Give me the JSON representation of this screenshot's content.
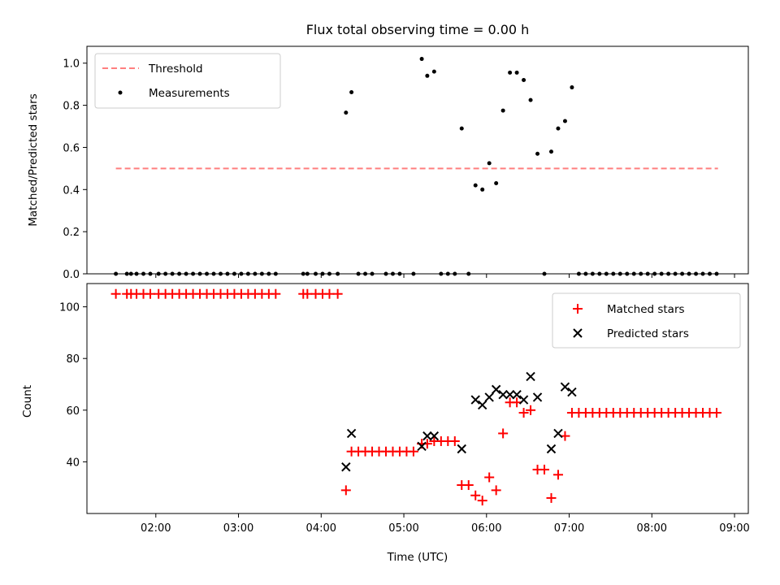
{
  "chart_data": [
    {
      "type": "scatter",
      "title": "Flux total observing time = 0.00 h",
      "xlabel": "",
      "ylabel": "Matched/Predicted stars",
      "xlim": [
        "01:10",
        "09:10"
      ],
      "ylim": [
        0,
        1.08
      ],
      "grid": false,
      "legend_position": "top-left",
      "y_ticks": [
        "0.0",
        "0.2",
        "0.4",
        "0.6",
        "0.8",
        "1.0"
      ],
      "series": [
        {
          "name": "Threshold",
          "kind": "dashed-line",
          "color": "#ff7f7f",
          "points": [
            {
              "x": "01:31",
              "y": 0.5
            },
            {
              "x": "08:48",
              "y": 0.5
            }
          ]
        },
        {
          "name": "Measurements",
          "kind": "dots",
          "color": "#000000",
          "points": [
            {
              "x": "01:31",
              "y": 0
            },
            {
              "x": "01:39",
              "y": 0
            },
            {
              "x": "01:42",
              "y": 0
            },
            {
              "x": "01:46",
              "y": 0
            },
            {
              "x": "01:51",
              "y": 0
            },
            {
              "x": "01:56",
              "y": 0
            },
            {
              "x": "02:02",
              "y": 0
            },
            {
              "x": "02:07",
              "y": 0
            },
            {
              "x": "02:12",
              "y": 0
            },
            {
              "x": "02:17",
              "y": 0
            },
            {
              "x": "02:22",
              "y": 0
            },
            {
              "x": "02:27",
              "y": 0
            },
            {
              "x": "02:32",
              "y": 0
            },
            {
              "x": "02:37",
              "y": 0
            },
            {
              "x": "02:42",
              "y": 0
            },
            {
              "x": "02:47",
              "y": 0
            },
            {
              "x": "02:52",
              "y": 0
            },
            {
              "x": "02:57",
              "y": 0
            },
            {
              "x": "03:02",
              "y": 0
            },
            {
              "x": "03:07",
              "y": 0
            },
            {
              "x": "03:12",
              "y": 0
            },
            {
              "x": "03:17",
              "y": 0
            },
            {
              "x": "03:22",
              "y": 0
            },
            {
              "x": "03:27",
              "y": 0
            },
            {
              "x": "03:47",
              "y": 0
            },
            {
              "x": "03:50",
              "y": 0
            },
            {
              "x": "03:56",
              "y": 0
            },
            {
              "x": "04:01",
              "y": 0
            },
            {
              "x": "04:06",
              "y": 0
            },
            {
              "x": "04:12",
              "y": 0
            },
            {
              "x": "04:18",
              "y": 0.765
            },
            {
              "x": "04:22",
              "y": 0.862
            },
            {
              "x": "04:27",
              "y": 0
            },
            {
              "x": "04:32",
              "y": 0
            },
            {
              "x": "04:37",
              "y": 0
            },
            {
              "x": "04:47",
              "y": 0
            },
            {
              "x": "04:52",
              "y": 0
            },
            {
              "x": "04:57",
              "y": 0
            },
            {
              "x": "05:07",
              "y": 0
            },
            {
              "x": "05:13",
              "y": 1.02
            },
            {
              "x": "05:17",
              "y": 0.94
            },
            {
              "x": "05:22",
              "y": 0.96
            },
            {
              "x": "05:27",
              "y": 0
            },
            {
              "x": "05:32",
              "y": 0
            },
            {
              "x": "05:37",
              "y": 0
            },
            {
              "x": "05:42",
              "y": 0.69
            },
            {
              "x": "05:47",
              "y": 0
            },
            {
              "x": "05:52",
              "y": 0.42
            },
            {
              "x": "05:57",
              "y": 0.4
            },
            {
              "x": "06:02",
              "y": 0.525
            },
            {
              "x": "06:07",
              "y": 0.43
            },
            {
              "x": "06:12",
              "y": 0.775
            },
            {
              "x": "06:17",
              "y": 0.955
            },
            {
              "x": "06:22",
              "y": 0.955
            },
            {
              "x": "06:27",
              "y": 0.92
            },
            {
              "x": "06:32",
              "y": 0.825
            },
            {
              "x": "06:37",
              "y": 0.57
            },
            {
              "x": "06:42",
              "y": 0
            },
            {
              "x": "06:47",
              "y": 0.58
            },
            {
              "x": "06:52",
              "y": 0.69
            },
            {
              "x": "06:57",
              "y": 0.725
            },
            {
              "x": "07:02",
              "y": 0.885
            },
            {
              "x": "07:07",
              "y": 0
            },
            {
              "x": "07:12",
              "y": 0
            },
            {
              "x": "07:17",
              "y": 0
            },
            {
              "x": "07:22",
              "y": 0
            },
            {
              "x": "07:27",
              "y": 0
            },
            {
              "x": "07:32",
              "y": 0
            },
            {
              "x": "07:37",
              "y": 0
            },
            {
              "x": "07:42",
              "y": 0
            },
            {
              "x": "07:47",
              "y": 0
            },
            {
              "x": "07:52",
              "y": 0
            },
            {
              "x": "07:57",
              "y": 0
            },
            {
              "x": "08:02",
              "y": 0
            },
            {
              "x": "08:07",
              "y": 0
            },
            {
              "x": "08:12",
              "y": 0
            },
            {
              "x": "08:17",
              "y": 0
            },
            {
              "x": "08:22",
              "y": 0
            },
            {
              "x": "08:27",
              "y": 0
            },
            {
              "x": "08:32",
              "y": 0
            },
            {
              "x": "08:37",
              "y": 0
            },
            {
              "x": "08:42",
              "y": 0
            },
            {
              "x": "08:47",
              "y": 0
            }
          ]
        }
      ]
    },
    {
      "type": "scatter",
      "title": "",
      "xlabel": "Time (UTC)",
      "ylabel": "Count",
      "xlim": [
        "01:10",
        "09:10"
      ],
      "ylim": [
        20,
        109
      ],
      "grid": false,
      "legend_position": "top-right",
      "x_ticks": [
        "02:00",
        "03:00",
        "04:00",
        "05:00",
        "06:00",
        "07:00",
        "08:00",
        "09:00"
      ],
      "y_ticks": [
        "40",
        "60",
        "80",
        "100"
      ],
      "series": [
        {
          "name": "Matched stars",
          "kind": "plus",
          "color": "#ff0000",
          "points": [
            {
              "x": "01:31",
              "y": 105
            },
            {
              "x": "01:39",
              "y": 105
            },
            {
              "x": "01:42",
              "y": 105
            },
            {
              "x": "01:46",
              "y": 105
            },
            {
              "x": "01:51",
              "y": 105
            },
            {
              "x": "01:56",
              "y": 105
            },
            {
              "x": "02:02",
              "y": 105
            },
            {
              "x": "02:07",
              "y": 105
            },
            {
              "x": "02:12",
              "y": 105
            },
            {
              "x": "02:17",
              "y": 105
            },
            {
              "x": "02:22",
              "y": 105
            },
            {
              "x": "02:27",
              "y": 105
            },
            {
              "x": "02:32",
              "y": 105
            },
            {
              "x": "02:37",
              "y": 105
            },
            {
              "x": "02:42",
              "y": 105
            },
            {
              "x": "02:47",
              "y": 105
            },
            {
              "x": "02:52",
              "y": 105
            },
            {
              "x": "02:57",
              "y": 105
            },
            {
              "x": "03:02",
              "y": 105
            },
            {
              "x": "03:07",
              "y": 105
            },
            {
              "x": "03:12",
              "y": 105
            },
            {
              "x": "03:17",
              "y": 105
            },
            {
              "x": "03:22",
              "y": 105
            },
            {
              "x": "03:27",
              "y": 105
            },
            {
              "x": "03:47",
              "y": 105
            },
            {
              "x": "03:50",
              "y": 105
            },
            {
              "x": "03:56",
              "y": 105
            },
            {
              "x": "04:01",
              "y": 105
            },
            {
              "x": "04:06",
              "y": 105
            },
            {
              "x": "04:12",
              "y": 105
            },
            {
              "x": "04:18",
              "y": 29
            },
            {
              "x": "04:22",
              "y": 44
            },
            {
              "x": "04:27",
              "y": 44
            },
            {
              "x": "04:32",
              "y": 44
            },
            {
              "x": "04:37",
              "y": 44
            },
            {
              "x": "04:42",
              "y": 44
            },
            {
              "x": "04:47",
              "y": 44
            },
            {
              "x": "04:52",
              "y": 44
            },
            {
              "x": "04:57",
              "y": 44
            },
            {
              "x": "05:02",
              "y": 44
            },
            {
              "x": "05:07",
              "y": 44
            },
            {
              "x": "05:13",
              "y": 47
            },
            {
              "x": "05:17",
              "y": 47
            },
            {
              "x": "05:22",
              "y": 48
            },
            {
              "x": "05:27",
              "y": 48
            },
            {
              "x": "05:32",
              "y": 48
            },
            {
              "x": "05:37",
              "y": 48
            },
            {
              "x": "05:42",
              "y": 31
            },
            {
              "x": "05:47",
              "y": 31
            },
            {
              "x": "05:52",
              "y": 27
            },
            {
              "x": "05:57",
              "y": 25
            },
            {
              "x": "06:02",
              "y": 34
            },
            {
              "x": "06:07",
              "y": 29
            },
            {
              "x": "06:12",
              "y": 51
            },
            {
              "x": "06:17",
              "y": 63
            },
            {
              "x": "06:22",
              "y": 63
            },
            {
              "x": "06:27",
              "y": 59
            },
            {
              "x": "06:32",
              "y": 60
            },
            {
              "x": "06:37",
              "y": 37
            },
            {
              "x": "06:42",
              "y": 37
            },
            {
              "x": "06:47",
              "y": 26
            },
            {
              "x": "06:52",
              "y": 35
            },
            {
              "x": "06:57",
              "y": 50
            },
            {
              "x": "07:02",
              "y": 59
            },
            {
              "x": "07:07",
              "y": 59
            },
            {
              "x": "07:12",
              "y": 59
            },
            {
              "x": "07:17",
              "y": 59
            },
            {
              "x": "07:22",
              "y": 59
            },
            {
              "x": "07:27",
              "y": 59
            },
            {
              "x": "07:32",
              "y": 59
            },
            {
              "x": "07:37",
              "y": 59
            },
            {
              "x": "07:42",
              "y": 59
            },
            {
              "x": "07:47",
              "y": 59
            },
            {
              "x": "07:52",
              "y": 59
            },
            {
              "x": "07:57",
              "y": 59
            },
            {
              "x": "08:02",
              "y": 59
            },
            {
              "x": "08:07",
              "y": 59
            },
            {
              "x": "08:12",
              "y": 59
            },
            {
              "x": "08:17",
              "y": 59
            },
            {
              "x": "08:22",
              "y": 59
            },
            {
              "x": "08:27",
              "y": 59
            },
            {
              "x": "08:32",
              "y": 59
            },
            {
              "x": "08:37",
              "y": 59
            },
            {
              "x": "08:42",
              "y": 59
            },
            {
              "x": "08:47",
              "y": 59
            }
          ]
        },
        {
          "name": "Predicted stars",
          "kind": "x",
          "color": "#000000",
          "points": [
            {
              "x": "04:18",
              "y": 38
            },
            {
              "x": "04:22",
              "y": 51
            },
            {
              "x": "05:13",
              "y": 46
            },
            {
              "x": "05:17",
              "y": 50
            },
            {
              "x": "05:22",
              "y": 50
            },
            {
              "x": "05:42",
              "y": 45
            },
            {
              "x": "05:52",
              "y": 64
            },
            {
              "x": "05:57",
              "y": 62
            },
            {
              "x": "06:02",
              "y": 65
            },
            {
              "x": "06:07",
              "y": 68
            },
            {
              "x": "06:12",
              "y": 66
            },
            {
              "x": "06:17",
              "y": 66
            },
            {
              "x": "06:22",
              "y": 66
            },
            {
              "x": "06:27",
              "y": 64
            },
            {
              "x": "06:32",
              "y": 73
            },
            {
              "x": "06:37",
              "y": 65
            },
            {
              "x": "06:47",
              "y": 45
            },
            {
              "x": "06:52",
              "y": 51
            },
            {
              "x": "06:57",
              "y": 69
            },
            {
              "x": "07:02",
              "y": 67
            }
          ]
        }
      ]
    }
  ]
}
